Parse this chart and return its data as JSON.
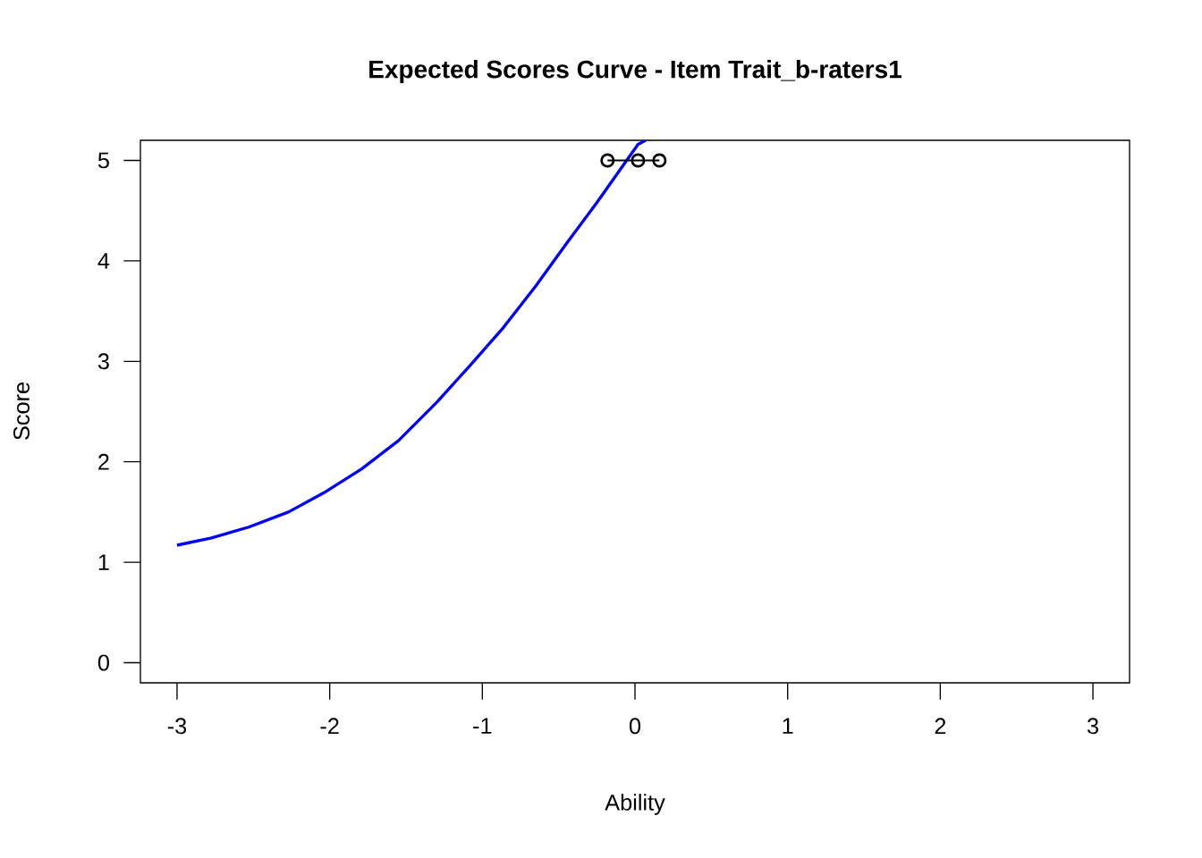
{
  "chart_data": {
    "type": "line",
    "title": "Expected Scores Curve - Item  Trait_b-raters1",
    "xlabel": "Ability",
    "ylabel": "Score",
    "xlim": [
      -3.24,
      3.24
    ],
    "ylim": [
      -0.2,
      5.2
    ],
    "xticks": [
      -3,
      -2,
      -1,
      0,
      1,
      2,
      3
    ],
    "yticks": [
      0,
      1,
      2,
      3,
      4,
      5
    ],
    "grid": false,
    "series": [
      {
        "color": "#0000ff",
        "marker": "none",
        "x": [
          -3,
          -2.78,
          -2.53,
          -2.27,
          -2.04,
          -1.79,
          -1.55,
          -1.3,
          -1.08,
          -0.86,
          -0.65,
          -0.45,
          -0.25,
          0.02,
          0.07
        ],
        "values": [
          1.17,
          1.24,
          1.35,
          1.5,
          1.69,
          1.93,
          2.21,
          2.59,
          2.96,
          3.34,
          3.75,
          4.17,
          4.58,
          5.16,
          5.2
        ]
      },
      {
        "type": "line",
        "color": "#000000",
        "marker": "circle",
        "x": [
          -0.18,
          0.02,
          0.16
        ],
        "values": [
          5,
          5,
          5
        ]
      }
    ]
  }
}
